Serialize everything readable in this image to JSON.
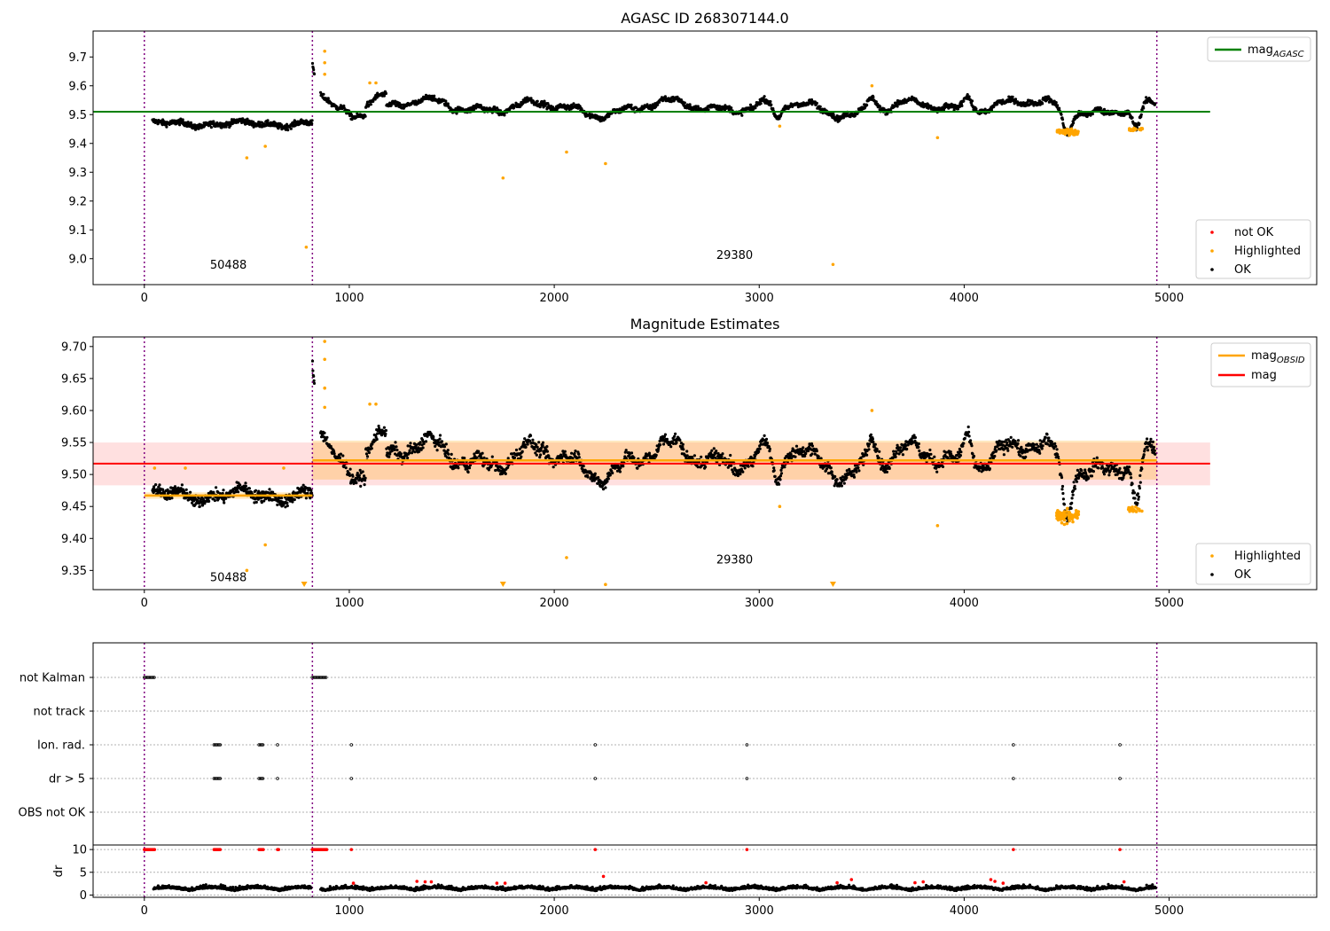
{
  "chart_data": [
    {
      "type": "scatter",
      "title": "AGASC ID 268307144.0",
      "xlim": [
        -250,
        5720
      ],
      "ylim": [
        8.91,
        9.79
      ],
      "xticks": [
        "0",
        "1000",
        "2000",
        "3000",
        "4000",
        "5000"
      ],
      "yticks": [
        "9.0",
        "9.1",
        "9.2",
        "9.3",
        "9.4",
        "9.5",
        "9.6",
        "9.7"
      ],
      "vlines": [
        0,
        820,
        4940
      ],
      "legend_lines": [
        {
          "label": "mag_AGASC",
          "color": "#008000"
        }
      ],
      "legend_points": [
        {
          "label": "not OK",
          "color": "#ff0000"
        },
        {
          "label": "Highlighted",
          "color": "#ffa500"
        },
        {
          "label": "OK",
          "color": "#000000"
        }
      ],
      "hlines": [
        {
          "name": "mag_AGASC",
          "y": 9.51,
          "x": [
            -250,
            5200
          ],
          "color": "#008000"
        }
      ],
      "obsid_labels": [
        {
          "text": "50488",
          "x": 410,
          "y": 8.965
        },
        {
          "text": "29380",
          "x": 2880,
          "y": 9.0
        }
      ],
      "highlighted_outliers": [
        [
          500,
          9.35
        ],
        [
          590,
          9.39
        ],
        [
          790,
          9.04
        ],
        [
          880,
          9.72
        ],
        [
          880,
          9.68
        ],
        [
          880,
          9.64
        ],
        [
          1100,
          9.61
        ],
        [
          1130,
          9.61
        ],
        [
          1750,
          9.28
        ],
        [
          2060,
          9.37
        ],
        [
          2250,
          9.33
        ],
        [
          3100,
          9.46
        ],
        [
          3360,
          8.98
        ],
        [
          3550,
          9.6
        ],
        [
          3870,
          9.42
        ]
      ]
    },
    {
      "type": "scatter",
      "title": "Magnitude Estimates",
      "xlim": [
        -250,
        5720
      ],
      "ylim": [
        9.32,
        9.715
      ],
      "xticks": [
        "0",
        "1000",
        "2000",
        "3000",
        "4000",
        "5000"
      ],
      "yticks": [
        "9.35",
        "9.40",
        "9.45",
        "9.50",
        "9.55",
        "9.60",
        "9.65",
        "9.70"
      ],
      "vlines": [
        0,
        820,
        4940
      ],
      "legend_lines": [
        {
          "label": "mag_OBSID",
          "color": "#ffa500"
        },
        {
          "label": "mag",
          "color": "#ff0000"
        }
      ],
      "legend_points": [
        {
          "label": "Highlighted",
          "color": "#ffa500"
        },
        {
          "label": "OK",
          "color": "#000000"
        }
      ],
      "mag": {
        "y": 9.517,
        "band": [
          9.483,
          9.55
        ],
        "x": [
          -250,
          5200
        ]
      },
      "mag_obsid": [
        {
          "obsid": "50488",
          "x": [
            0,
            820
          ],
          "y": 9.467,
          "band": [
            9.462,
            9.472
          ]
        },
        {
          "obsid": "29380",
          "x": [
            820,
            4940
          ],
          "y": 9.522,
          "band": [
            9.492,
            9.553
          ]
        }
      ],
      "obsid_labels": [
        {
          "text": "50488",
          "x": 410,
          "y": 9.333
        },
        {
          "text": "29380",
          "x": 2880,
          "y": 9.361
        }
      ],
      "highlighted_outliers": [
        [
          50,
          9.51
        ],
        [
          200,
          9.51
        ],
        [
          500,
          9.35
        ],
        [
          590,
          9.39
        ],
        [
          680,
          9.51
        ],
        [
          880,
          9.708
        ],
        [
          880,
          9.68
        ],
        [
          880,
          9.635
        ],
        [
          880,
          9.605
        ],
        [
          1100,
          9.61
        ],
        [
          1130,
          9.61
        ],
        [
          2060,
          9.37
        ],
        [
          2250,
          9.328
        ],
        [
          3100,
          9.45
        ],
        [
          3550,
          9.6
        ],
        [
          3870,
          9.42
        ]
      ],
      "offscale_markers": [
        780,
        1750,
        3360
      ]
    },
    {
      "type": "scatter",
      "title": "",
      "xlim": [
        -250,
        5720
      ],
      "xticks": [
        "0",
        "1000",
        "2000",
        "3000",
        "4000",
        "5000"
      ],
      "vlines": [
        0,
        820,
        4940
      ],
      "flag_rows": [
        "not Kalman",
        "not track",
        "Ion. rad.",
        "dr > 5",
        "OBS not OK"
      ],
      "flags": {
        "not Kalman": [
          [
            0,
            50
          ],
          [
            820,
            890
          ]
        ],
        "not track": [],
        "Ion. rad.": [
          [
            340,
            370
          ],
          [
            560,
            580
          ],
          [
            650,
            655
          ],
          [
            1010,
            1012
          ],
          [
            2200,
            2202
          ],
          [
            2940,
            2942
          ],
          [
            4240,
            4242
          ],
          [
            4760,
            4762
          ]
        ],
        "dr > 5": [
          [
            340,
            370
          ],
          [
            560,
            580
          ],
          [
            650,
            655
          ],
          [
            1010,
            1012
          ],
          [
            2200,
            2202
          ],
          [
            2940,
            2942
          ],
          [
            4240,
            4242
          ],
          [
            4760,
            4762
          ]
        ],
        "OBS not OK": []
      },
      "dr": {
        "ylabel": "dr",
        "ylim": [
          -0.5,
          11
        ],
        "yticks": [
          "0",
          "5",
          "10"
        ],
        "clipped_at_10": [
          [
            0,
            50
          ],
          [
            340,
            370
          ],
          [
            560,
            580
          ],
          [
            650,
            655
          ],
          [
            820,
            890
          ],
          [
            1010,
            1012
          ],
          [
            2200,
            2202
          ],
          [
            2940,
            2942
          ],
          [
            4240,
            4242
          ],
          [
            4760,
            4762
          ]
        ],
        "red_points": [
          [
            1020,
            2.6
          ],
          [
            1330,
            3.0
          ],
          [
            1370,
            2.9
          ],
          [
            1400,
            2.9
          ],
          [
            1720,
            2.6
          ],
          [
            1760,
            2.6
          ],
          [
            2240,
            4.1
          ],
          [
            2740,
            2.7
          ],
          [
            3380,
            2.7
          ],
          [
            3450,
            3.4
          ],
          [
            3760,
            2.7
          ],
          [
            3800,
            2.9
          ],
          [
            4130,
            3.4
          ],
          [
            4150,
            3.0
          ],
          [
            4190,
            2.6
          ],
          [
            4780,
            2.9
          ]
        ]
      }
    }
  ]
}
